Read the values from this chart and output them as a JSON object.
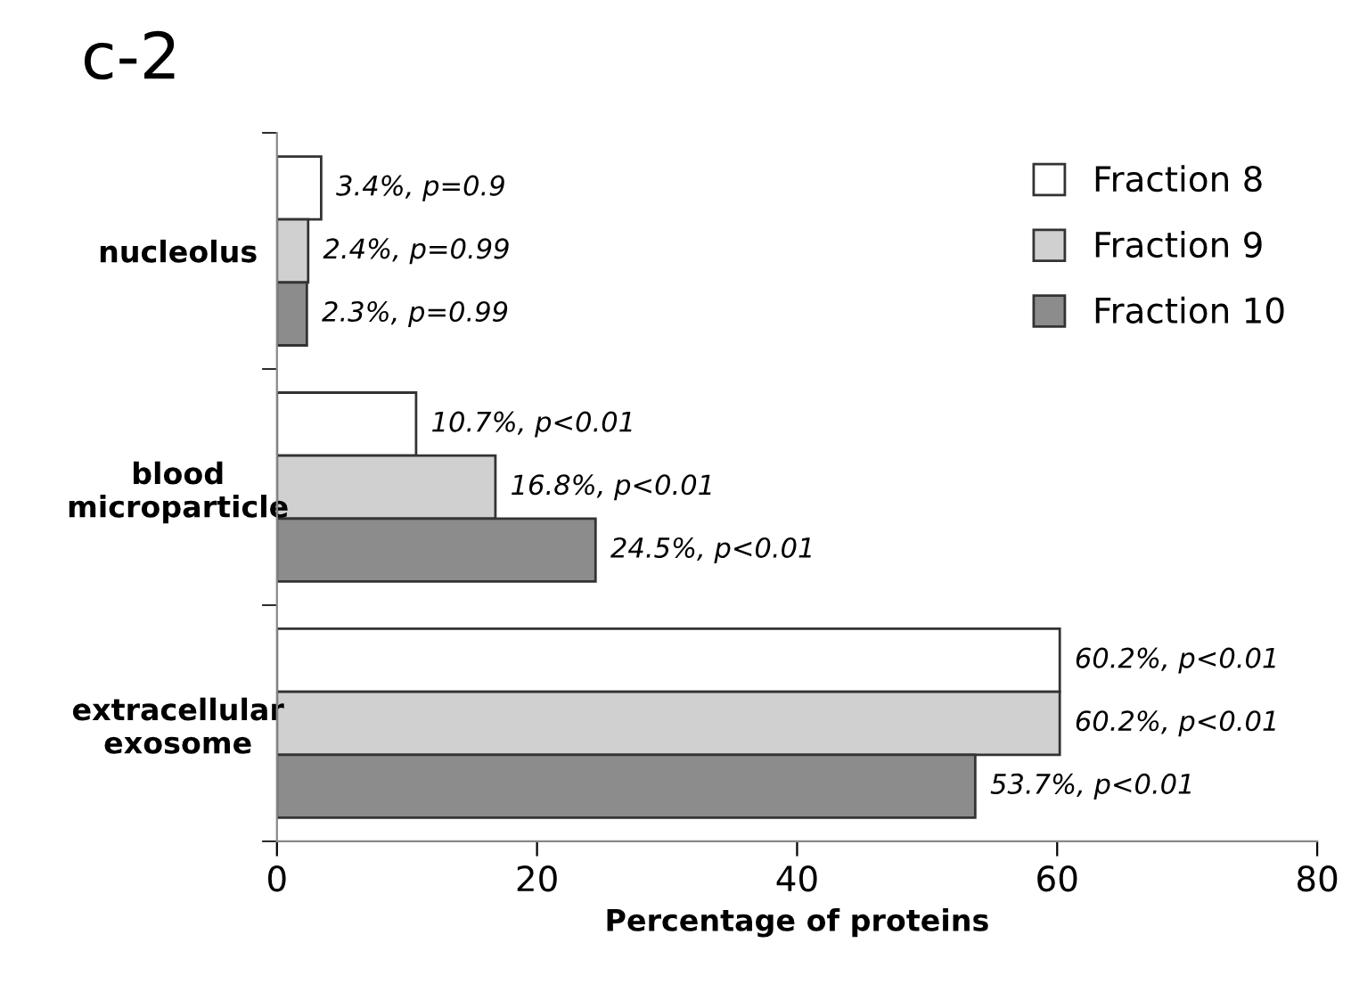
{
  "chart_data": {
    "type": "bar",
    "orientation": "horizontal",
    "title": "c-2",
    "xlabel": "Percentage of proteins",
    "categories": [
      "nucleolus",
      "blood\nmicroparticle",
      "extracellular\nexosome"
    ],
    "series": [
      {
        "name": "Fraction 8",
        "color": "#ffffff",
        "values": [
          3.4,
          10.7,
          60.2
        ],
        "value_labels": [
          "3.4%, p=0.9",
          "10.7%, p<0.01",
          "60.2%, p<0.01"
        ]
      },
      {
        "name": "Fraction 9",
        "color": "#d0d0d0",
        "values": [
          2.4,
          16.8,
          60.2
        ],
        "value_labels": [
          "2.4%, p=0.99",
          "16.8%, p<0.01",
          "60.2%, p<0.01"
        ]
      },
      {
        "name": "Fraction 10",
        "color": "#8c8c8c",
        "values": [
          2.3,
          24.5,
          53.7
        ],
        "value_labels": [
          "2.3%, p=0.99",
          "24.5%, p<0.01",
          "53.7%, p<0.01"
        ]
      }
    ],
    "xlim": [
      0,
      80
    ],
    "xticks": [
      0,
      20,
      40,
      60,
      80
    ],
    "grid": false,
    "legend": "top right"
  }
}
